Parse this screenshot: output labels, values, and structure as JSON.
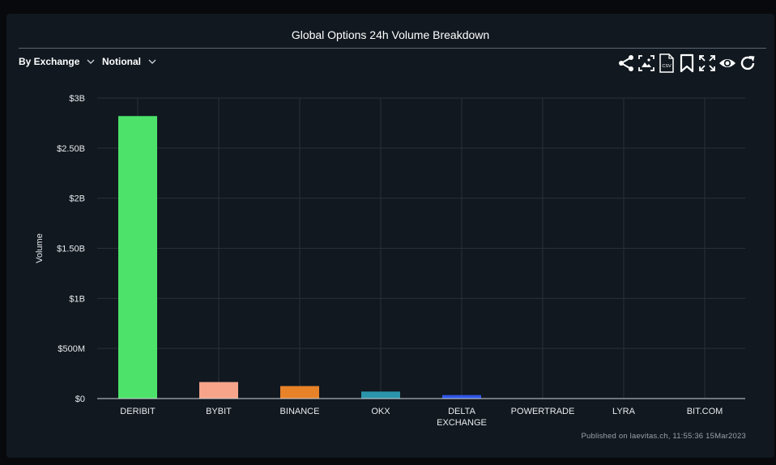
{
  "title": "Global Options 24h Volume Breakdown",
  "controls": {
    "group_by": "By Exchange",
    "metric": "Notional"
  },
  "toolbar": {
    "icons": [
      "share-icon",
      "image-export-icon",
      "csv-export-icon",
      "bookmark-icon",
      "fullscreen-icon",
      "eye-icon",
      "refresh-icon"
    ],
    "csv_label": "CSV"
  },
  "published": "Published on laevitas.ch, 11:55:36 15Mar2023",
  "chart_data": {
    "type": "bar",
    "title": "Global Options 24h Volume Breakdown",
    "xlabel": "",
    "ylabel": "Volume",
    "ylim": [
      0,
      3000000000
    ],
    "yticks": [
      0,
      500000000,
      1000000000,
      1500000000,
      2000000000,
      2500000000,
      3000000000
    ],
    "ytick_labels": [
      "$0",
      "$500M",
      "$1B",
      "$1.50B",
      "$2B",
      "$2.50B",
      "$3B"
    ],
    "grid": true,
    "categories": [
      "DERIBIT",
      "BYBIT",
      "BINANCE",
      "OKX",
      "DELTA EXCHANGE",
      "POWERTRADE",
      "LYRA",
      "BIT.COM"
    ],
    "category_lines": [
      [
        "DERIBIT"
      ],
      [
        "BYBIT"
      ],
      [
        "BINANCE"
      ],
      [
        "OKX"
      ],
      [
        "DELTA",
        "EXCHANGE"
      ],
      [
        "POWERTRADE"
      ],
      [
        "LYRA"
      ],
      [
        "BIT.COM"
      ]
    ],
    "values": [
      2820000000,
      165000000,
      125000000,
      70000000,
      35000000,
      3000000,
      2000000,
      1000000
    ],
    "colors": [
      "#4de36a",
      "#f7a48b",
      "#e88229",
      "#2a94ab",
      "#2f56e6",
      "#9b59b6",
      "#9b59b6",
      "#9b59b6"
    ]
  },
  "colors": {
    "background": "#07090c",
    "panel": "#111820",
    "grid": "#2a3038",
    "text": "#e8eaed"
  }
}
